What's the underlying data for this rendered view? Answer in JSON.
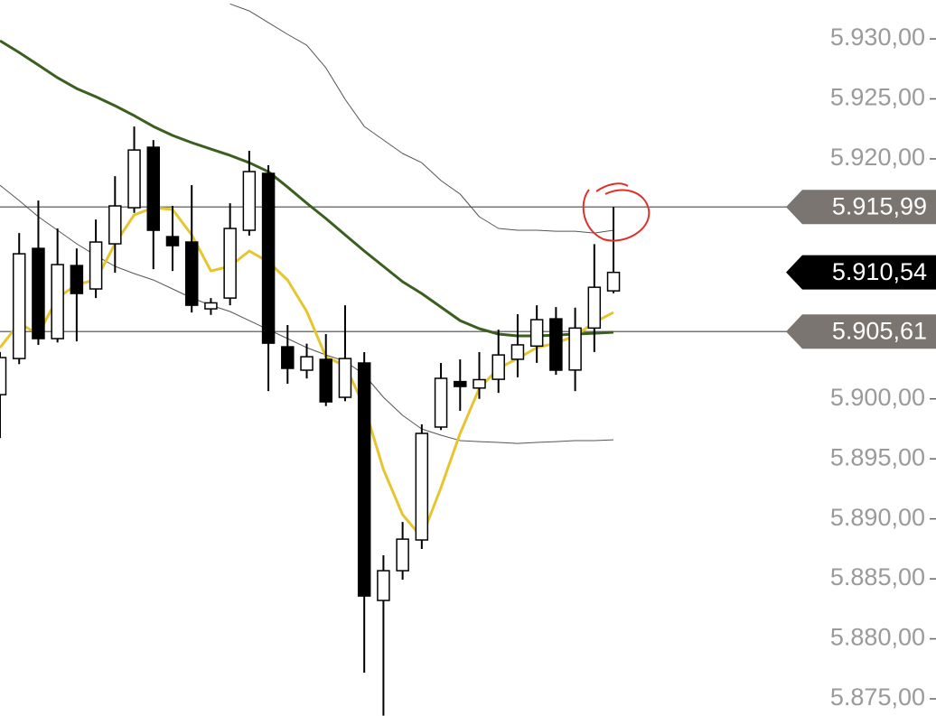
{
  "chart_data": {
    "type": "candlestick",
    "ylim": [
      5873.57,
      5933.24
    ],
    "yticks": [
      {
        "value": 5930,
        "label": "5.930,00"
      },
      {
        "value": 5925,
        "label": "5.925,00"
      },
      {
        "value": 5920,
        "label": "5.920,00"
      },
      {
        "value": 5915,
        "label": "5.915,00"
      },
      {
        "value": 5910,
        "label": "5.910,00"
      },
      {
        "value": 5905,
        "label": "5.905,00"
      },
      {
        "value": 5900,
        "label": "5.900,00"
      },
      {
        "value": 5895,
        "label": "5.895,00"
      },
      {
        "value": 5890,
        "label": "5.890,00"
      },
      {
        "value": 5885,
        "label": "5.885,00"
      },
      {
        "value": 5880,
        "label": "5.880,00"
      },
      {
        "value": 5875,
        "label": "5.875,00"
      }
    ],
    "hidden_ticks": [
      5915,
      5910,
      5905
    ],
    "candles": [
      {
        "open": 5900.35,
        "high": 5903.9,
        "low": 5896.74,
        "close": 5903.44
      },
      {
        "open": 5903.36,
        "high": 5913.82,
        "low": 5902.9,
        "close": 5912.09
      },
      {
        "open": 5912.54,
        "high": 5916.53,
        "low": 5904.5,
        "close": 5905.02
      },
      {
        "open": 5905.02,
        "high": 5914.2,
        "low": 5904.7,
        "close": 5911.19
      },
      {
        "open": 5911.11,
        "high": 5912.54,
        "low": 5904.79,
        "close": 5908.78
      },
      {
        "open": 5909.16,
        "high": 5914.95,
        "low": 5908.4,
        "close": 5913.07
      },
      {
        "open": 5912.92,
        "high": 5918.56,
        "low": 5910.51,
        "close": 5916.08
      },
      {
        "open": 5915.93,
        "high": 5922.7,
        "low": 5915.5,
        "close": 5920.74
      },
      {
        "open": 5920.97,
        "high": 5921.57,
        "low": 5910.81,
        "close": 5914.05
      },
      {
        "open": 5913.52,
        "high": 5916.08,
        "low": 5910.66,
        "close": 5912.77
      },
      {
        "open": 5913.07,
        "high": 5917.81,
        "low": 5907.2,
        "close": 5907.8
      },
      {
        "open": 5907.5,
        "high": 5908.4,
        "low": 5907.0,
        "close": 5908.0
      },
      {
        "open": 5908.4,
        "high": 5916.3,
        "low": 5907.8,
        "close": 5914.2
      },
      {
        "open": 5914.05,
        "high": 5920.67,
        "low": 5913.6,
        "close": 5918.94
      },
      {
        "open": 5918.79,
        "high": 5919.47,
        "low": 5900.65,
        "close": 5904.64
      },
      {
        "open": 5904.34,
        "high": 5906.15,
        "low": 5901.26,
        "close": 5902.54
      },
      {
        "open": 5902.39,
        "high": 5904.6,
        "low": 5901.7,
        "close": 5903.51
      },
      {
        "open": 5903.29,
        "high": 5905.4,
        "low": 5899.4,
        "close": 5899.75
      },
      {
        "open": 5900.13,
        "high": 5907.8,
        "low": 5899.8,
        "close": 5903.36
      },
      {
        "open": 5902.99,
        "high": 5903.89,
        "low": 5877.18,
        "close": 5883.57
      },
      {
        "open": 5883.2,
        "high": 5886.96,
        "low": 5873.6,
        "close": 5885.68
      },
      {
        "open": 5885.68,
        "high": 5889.74,
        "low": 5884.93,
        "close": 5888.31
      },
      {
        "open": 5888.24,
        "high": 5897.87,
        "low": 5887.49,
        "close": 5897.12
      },
      {
        "open": 5897.65,
        "high": 5902.99,
        "low": 5897.4,
        "close": 5901.71
      },
      {
        "open": 5901.44,
        "high": 5903.29,
        "low": 5899.0,
        "close": 5901.03
      },
      {
        "open": 5900.9,
        "high": 5903.9,
        "low": 5900.0,
        "close": 5901.6
      },
      {
        "open": 5901.63,
        "high": 5905.77,
        "low": 5900.5,
        "close": 5903.66
      },
      {
        "open": 5903.3,
        "high": 5907.05,
        "low": 5901.8,
        "close": 5904.5
      },
      {
        "open": 5904.4,
        "high": 5907.8,
        "low": 5903.0,
        "close": 5906.6
      },
      {
        "open": 5906.67,
        "high": 5907.65,
        "low": 5902.0,
        "close": 5902.39
      },
      {
        "open": 5902.4,
        "high": 5907.6,
        "low": 5900.65,
        "close": 5905.9
      },
      {
        "open": 5905.9,
        "high": 5912.9,
        "low": 5903.9,
        "close": 5909.3
      },
      {
        "open": 5909.0,
        "high": 5915.99,
        "low": 5908.8,
        "close": 5910.54
      }
    ],
    "up_color": "#ffffff",
    "down_color": "#000000",
    "series": [
      {
        "color": "#3b5f1e",
        "width": 3,
        "values": [
          5929.85,
          5928.87,
          5927.82,
          5926.76,
          5925.86,
          5925.18,
          5924.43,
          5923.6,
          5922.7,
          5921.95,
          5921.35,
          5920.82,
          5920.29,
          5919.68,
          5918.93,
          5917.65,
          5916.31,
          5915.03,
          5913.67,
          5912.32,
          5911.04,
          5909.76,
          5908.78,
          5907.65,
          5906.52,
          5905.85,
          5905.4,
          5905.25,
          5905.25,
          5905.32,
          5905.4,
          5905.47,
          5905.55
        ]
      },
      {
        "color": "#555555",
        "width": 1,
        "values": [
          null,
          null,
          null,
          null,
          null,
          null,
          null,
          null,
          null,
          null,
          null,
          null,
          5932.92,
          5932.33,
          5931.35,
          5930.38,
          5929.47,
          5927.59,
          5924.96,
          5922.7,
          5921.58,
          5920.45,
          5919.68,
          5918.19,
          5917.06,
          5915.18,
          5914.2,
          5914.05,
          5914.05,
          5913.97,
          5913.97,
          5913.82,
          5914.05
        ]
      },
      {
        "color": "#555555",
        "width": 1,
        "values": [
          5917.81,
          5916.53,
          5915.18,
          5914.05,
          5912.92,
          5911.94,
          5911.04,
          5910.44,
          5909.91,
          5909.16,
          5908.41,
          5907.8,
          5907.28,
          5906.52,
          5905.77,
          5905.02,
          5904.27,
          5903.66,
          5903.14,
          5902.01,
          5900.13,
          5898.63,
          5897.49,
          5896.97,
          5896.52,
          5896.44,
          5896.37,
          5896.29,
          5896.37,
          5896.44,
          5896.52,
          5896.52,
          5896.59
        ]
      },
      {
        "color": "#e7c52f",
        "width": 3,
        "values": [
          5904.27,
          5906.3,
          5905.4,
          5908.41,
          5909.53,
          5909.91,
          5912.92,
          5915.33,
          5915.93,
          5915.78,
          5913.67,
          5910.66,
          5911.04,
          5912.32,
          5911.41,
          5909.91,
          5907.28,
          5903.51,
          5902.76,
          5899.38,
          5894.11,
          5890.35,
          5888.47,
          5892.61,
          5897.12,
          5900.88,
          5902.54,
          5903.36,
          5904.27,
          5904.65,
          5905.25,
          5906.37,
          5907.2
        ]
      }
    ],
    "price_lines": [
      {
        "value": 5915.99,
        "label": "5.915,99",
        "color": "#7a7570",
        "line": true
      },
      {
        "value": 5910.54,
        "label": "5.910,54",
        "color": "#000000",
        "line": false
      },
      {
        "value": 5905.61,
        "label": "5.905,61",
        "color": "#7a7570",
        "line": true
      }
    ]
  }
}
